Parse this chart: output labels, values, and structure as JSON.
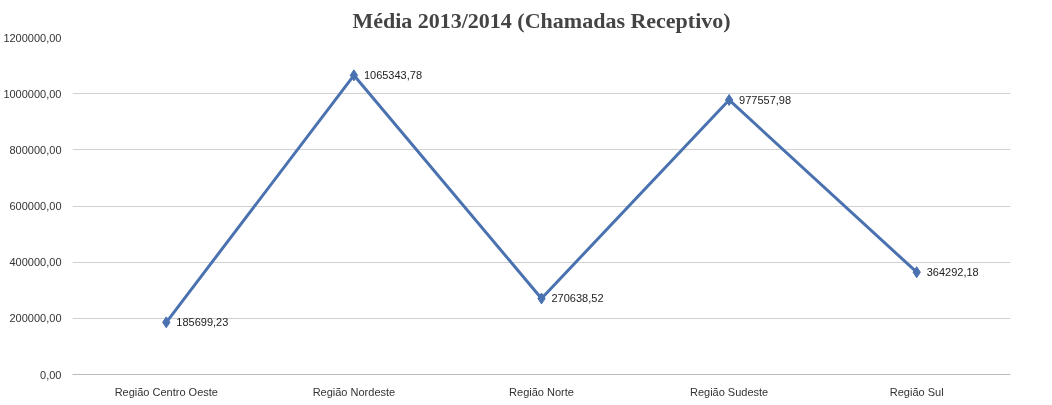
{
  "chart_data": {
    "type": "line",
    "title": "Média 2013/2014 (Chamadas Receptivo)",
    "categories": [
      "Região Centro Oeste",
      "Região Nordeste",
      "Região Norte",
      "Região Sudeste",
      "Região Sul"
    ],
    "values": [
      185699.23,
      1065343.78,
      270638.52,
      977557.98,
      364292.18
    ],
    "value_labels": [
      "185699,23",
      "1065343,78",
      "270638,52",
      "977557,98",
      "364292,18"
    ],
    "color": "#4a72b0",
    "ylim": [
      0,
      1200000
    ],
    "yticks": [
      {
        "value": 0,
        "label": "0,00"
      },
      {
        "value": 200000,
        "label": "200000,00"
      },
      {
        "value": 400000,
        "label": "400000,00"
      },
      {
        "value": 600000,
        "label": "600000,00"
      },
      {
        "value": 800000,
        "label": "800000,00"
      },
      {
        "value": 1000000,
        "label": "1000000,00"
      },
      {
        "value": 1200000,
        "label": "1200000,00"
      }
    ],
    "grid": "y",
    "marker": "diamond",
    "line_style": "solid"
  }
}
